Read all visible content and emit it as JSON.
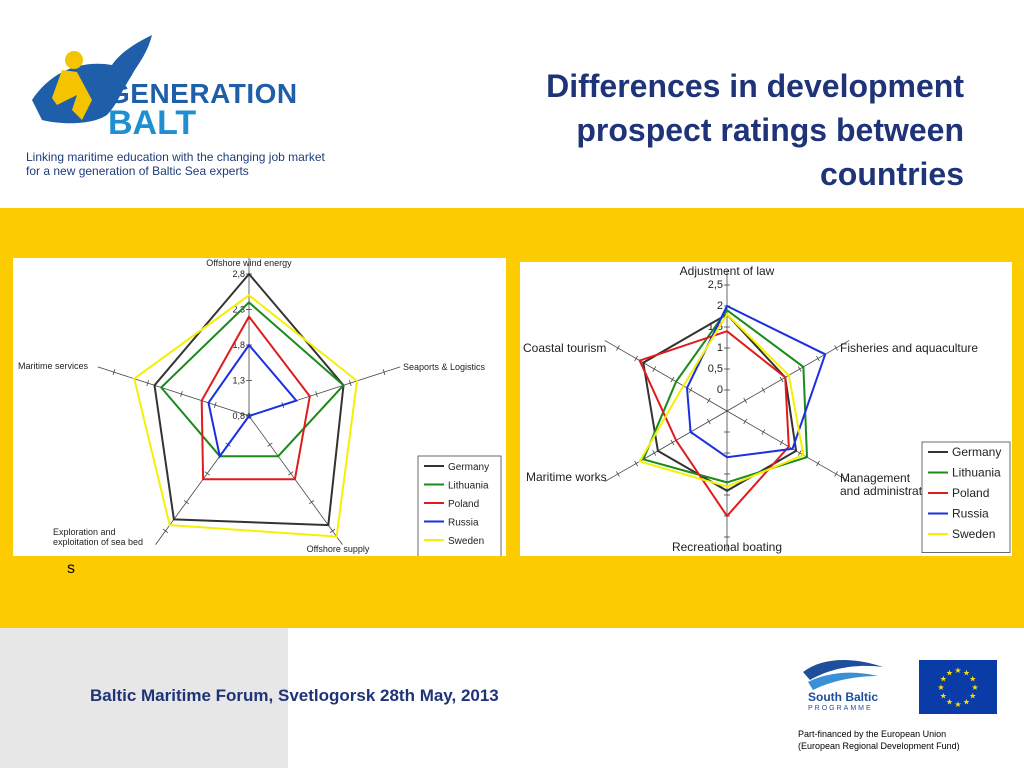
{
  "header": {
    "brand_line1": "GENERATION",
    "brand_line2": "BALT",
    "tagline": "Linking maritime education with the changing job market for a new generation of Baltic Sea experts",
    "title": "Differences in development prospect ratings between countries"
  },
  "stray_text": "s",
  "footer": {
    "event": "Baltic Maritime Forum, Svetlogorsk 28th May, 2013",
    "programme_name": "South Baltic",
    "programme_sub": "PROGRAMME",
    "eu_note_line1": "Part-financed by the European Union",
    "eu_note_line2": "(European Regional Development Fund)"
  },
  "colors": {
    "band": "#fccb00",
    "title": "#1f3478",
    "Germany": "#333333",
    "Lithuania": "#1a8a1a",
    "Poland": "#e01b1b",
    "Russia": "#1a2fe0",
    "Sweden": "#f5f000"
  },
  "chart_data": [
    {
      "type": "radar",
      "axes": [
        "Offshore wind energy",
        "Seaports & Logistics",
        "Offshore supply",
        "Exploration and exploitation of sea bed",
        "Maritime services"
      ],
      "rlim": [
        0.8,
        2.8
      ],
      "ticks": [
        "0,8",
        "1,3",
        "1,8",
        "2,3",
        "2,8"
      ],
      "tick_values": [
        0.8,
        1.3,
        1.8,
        2.3,
        2.8
      ],
      "legend": "bottom-right",
      "series": [
        {
          "name": "Germany",
          "values": [
            2.8,
            2.2,
            2.7,
            2.6,
            2.2
          ]
        },
        {
          "name": "Lithuania",
          "values": [
            2.4,
            2.2,
            1.5,
            1.5,
            2.1
          ]
        },
        {
          "name": "Poland",
          "values": [
            2.2,
            1.7,
            1.9,
            1.9,
            1.5
          ]
        },
        {
          "name": "Russia",
          "values": [
            1.8,
            1.5,
            0.8,
            1.5,
            1.4
          ]
        },
        {
          "name": "Sweden",
          "values": [
            2.5,
            2.4,
            2.9,
            2.7,
            2.5
          ]
        }
      ]
    },
    {
      "type": "radar",
      "axes": [
        "Adjustment of law",
        "Fisheries and aquaculture",
        "Management and administration",
        "Recreational boating",
        "Maritime works",
        "Coastal tourism"
      ],
      "rlim": [
        -0.5,
        2.5
      ],
      "ticks": [
        "0",
        "0,5",
        "1",
        "1,5",
        "2",
        "2,5"
      ],
      "tick_values": [
        0,
        0.5,
        1,
        1.5,
        2,
        2.5
      ],
      "legend": "bottom-right",
      "series": [
        {
          "name": "Germany",
          "values": [
            1.8,
            1.1,
            1.4,
            1.4,
            1.4,
            1.8
          ]
        },
        {
          "name": "Lithuania",
          "values": [
            1.9,
            1.6,
            1.7,
            1.2,
            1.8,
            0.9
          ]
        },
        {
          "name": "Poland",
          "values": [
            1.4,
            1.1,
            1.2,
            2.0,
            0.9,
            1.9
          ]
        },
        {
          "name": "Russia",
          "values": [
            2.0,
            2.2,
            1.3,
            0.6,
            0.5,
            0.6
          ]
        },
        {
          "name": "Sweden",
          "values": [
            1.8,
            1.2,
            1.6,
            1.3,
            1.9,
            0.7
          ]
        }
      ]
    }
  ]
}
